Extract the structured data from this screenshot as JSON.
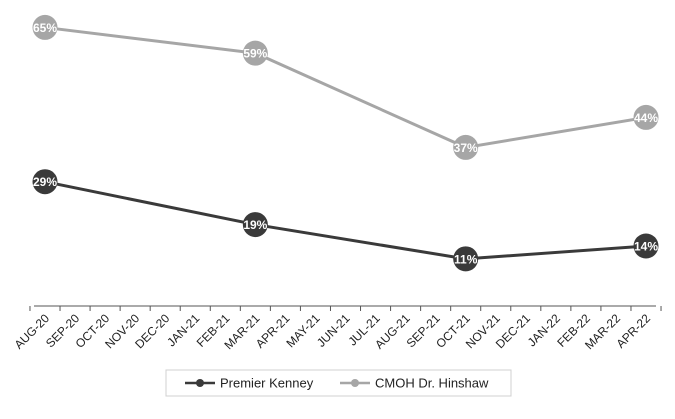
{
  "chart_data": {
    "type": "line",
    "categories": [
      "AUG-20",
      "SEP-20",
      "OCT-20",
      "NOV-20",
      "DEC-20",
      "JAN-21",
      "FEB-21",
      "MAR-21",
      "APR-21",
      "MAY-21",
      "JUN-21",
      "JUL-21",
      "AUG-21",
      "SEP-21",
      "OCT-21",
      "NOV-21",
      "DEC-21",
      "JAN-22",
      "FEB-22",
      "MAR-22",
      "APR-22"
    ],
    "series": [
      {
        "name": "Premier Kenney",
        "color": "#3a3a3a",
        "points": [
          {
            "x": "AUG-20",
            "y": 29,
            "label": "29%"
          },
          {
            "x": "MAR-21",
            "y": 19,
            "label": "19%"
          },
          {
            "x": "OCT-21",
            "y": 11,
            "label": "11%"
          },
          {
            "x": "APR-22",
            "y": 14,
            "label": "14%"
          }
        ]
      },
      {
        "name": "CMOH Dr. Hinshaw",
        "color": "#a6a6a6",
        "points": [
          {
            "x": "AUG-20",
            "y": 65,
            "label": "65%"
          },
          {
            "x": "MAR-21",
            "y": 59,
            "label": "59%"
          },
          {
            "x": "OCT-21",
            "y": 37,
            "label": "37%"
          },
          {
            "x": "APR-22",
            "y": 44,
            "label": "44%"
          }
        ]
      }
    ],
    "ylim": [
      0,
      70
    ],
    "grid": false,
    "legend": "bottom"
  }
}
